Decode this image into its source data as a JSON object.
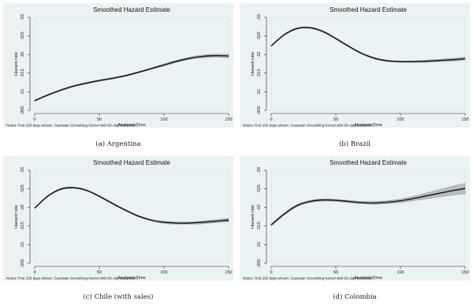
{
  "chart_data": [
    {
      "type": "line",
      "caption": "(a) Argentina",
      "title": "Smoothed Hazard Estimate",
      "xlabel": "Analysis Time",
      "ylabel": "Hazard rate",
      "note": "Notes: First 150 days shown. Gaussian Smoothing Kernel with 60–day bandwidth.",
      "xlim": [
        0,
        150
      ],
      "ylim": [
        0.005,
        0.03
      ],
      "xticks": [
        0,
        50,
        100,
        150
      ],
      "yticks": [
        ".005",
        ".01",
        ".015",
        ".02",
        ".025",
        ".03"
      ],
      "x": [
        0,
        10,
        20,
        30,
        40,
        50,
        60,
        70,
        80,
        90,
        100,
        110,
        120,
        130,
        140,
        150
      ],
      "y": [
        0.0076,
        0.0091,
        0.0104,
        0.0115,
        0.0123,
        0.013,
        0.0136,
        0.0143,
        0.0152,
        0.0162,
        0.0172,
        0.0182,
        0.019,
        0.0195,
        0.0197,
        0.0196
      ],
      "band_width": [
        0.0002,
        0.0002,
        0.0002,
        0.0002,
        0.0002,
        0.0002,
        0.0002,
        0.0002,
        0.0002,
        0.0002,
        0.0003,
        0.0003,
        0.0003,
        0.0004,
        0.0004,
        0.0005
      ]
    },
    {
      "type": "line",
      "caption": "(b) Brazil",
      "title": "Smoothed Hazard Estimate",
      "xlabel": "Analysis Time",
      "ylabel": "Hazard rate",
      "note": "Notes: First 150 days shown. Gaussian Smoothing Kernel with 60–day bandwidth.",
      "xlim": [
        0,
        150
      ],
      "ylim": [
        0.005,
        0.03
      ],
      "xticks": [
        0,
        50,
        100,
        150
      ],
      "yticks": [
        ".005",
        ".01",
        ".015",
        ".02",
        ".025",
        ".03"
      ],
      "x": [
        0,
        10,
        20,
        30,
        40,
        50,
        60,
        70,
        80,
        90,
        100,
        110,
        120,
        130,
        140,
        150
      ],
      "y": [
        0.0223,
        0.0253,
        0.027,
        0.0272,
        0.0262,
        0.0243,
        0.0222,
        0.0203,
        0.019,
        0.0183,
        0.0181,
        0.0181,
        0.0182,
        0.0184,
        0.0186,
        0.0189
      ],
      "band_width": [
        0.0002,
        0.0002,
        0.0002,
        0.0002,
        0.0002,
        0.0002,
        0.0002,
        0.0002,
        0.0002,
        0.0002,
        0.0002,
        0.0002,
        0.0003,
        0.0003,
        0.0004,
        0.0004
      ]
    },
    {
      "type": "line",
      "caption": "(c) Chile (with sales)",
      "title": "Smoothed Hazard Estimate",
      "xlabel": "Analysis Time",
      "ylabel": "Hazard rate",
      "note": "Notes: First 150 days shown. Gaussian Smoothing Kernel with 60–day bandwidth.",
      "xlim": [
        0,
        150
      ],
      "ylim": [
        0.005,
        0.03
      ],
      "xticks": [
        0,
        50,
        100,
        150
      ],
      "yticks": [
        ".005",
        ".01",
        ".015",
        ".02",
        ".025",
        ".03"
      ],
      "x": [
        0,
        10,
        20,
        30,
        40,
        50,
        60,
        70,
        80,
        90,
        100,
        110,
        120,
        130,
        140,
        150
      ],
      "y": [
        0.0198,
        0.023,
        0.0249,
        0.0253,
        0.0246,
        0.023,
        0.0211,
        0.0193,
        0.0177,
        0.0166,
        0.016,
        0.0158,
        0.0158,
        0.016,
        0.0163,
        0.0166
      ],
      "band_width": [
        0.0002,
        0.0002,
        0.0002,
        0.0002,
        0.0002,
        0.0002,
        0.0002,
        0.0002,
        0.0002,
        0.0002,
        0.0003,
        0.0003,
        0.0003,
        0.0004,
        0.0004,
        0.0005
      ]
    },
    {
      "type": "line",
      "caption": "(d) Colombia",
      "title": "Smoothed Hazard Estimate",
      "xlabel": "Analysis Time",
      "ylabel": "Hazard rate",
      "note": "Notes: First 150 days shown. Gaussian Smoothing Kernel with 60–day bandwidth.",
      "xlim": [
        0,
        150
      ],
      "ylim": [
        0.005,
        0.03
      ],
      "xticks": [
        0,
        50,
        100,
        150
      ],
      "yticks": [
        ".005",
        ".01",
        ".015",
        ".02",
        ".025",
        ".03"
      ],
      "x": [
        0,
        10,
        20,
        30,
        40,
        50,
        60,
        70,
        80,
        90,
        100,
        110,
        120,
        130,
        140,
        150
      ],
      "y": [
        0.0153,
        0.0182,
        0.0205,
        0.0216,
        0.022,
        0.0219,
        0.0216,
        0.0213,
        0.0212,
        0.0214,
        0.0218,
        0.0224,
        0.0231,
        0.0238,
        0.0245,
        0.0251
      ],
      "band_width": [
        0.0003,
        0.0003,
        0.0003,
        0.0003,
        0.0003,
        0.0003,
        0.0003,
        0.0003,
        0.0004,
        0.0004,
        0.0005,
        0.0006,
        0.0008,
        0.001,
        0.0012,
        0.0014
      ]
    }
  ],
  "colors": {
    "plot_bg": "#eaf2f3",
    "line": "#111111",
    "band": "#b9bdbf"
  }
}
